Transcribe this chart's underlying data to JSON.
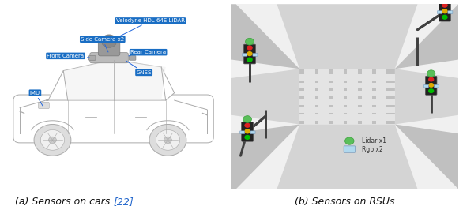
{
  "fig_width": 5.86,
  "fig_height": 2.66,
  "dpi": 100,
  "background_color": "#ffffff",
  "caption_left_main": "(a) Sensors on cars ",
  "caption_left_ref": "[22]",
  "caption_right": "(b) Sensors on RSUs",
  "caption_fontsize": 9,
  "caption_ref_color": "#2266cc",
  "caption_text_color": "#111111",
  "label_bg_color": "#1a6ec4",
  "label_text_color": "#ffffff",
  "label_fontsize": 5.0,
  "road_color": "#b8b8b8",
  "sidewalk_color": "#d0d0d0",
  "road_line_color": "#e8e8e8",
  "center_color": "#c4c4c4",
  "pole_color": "#404040",
  "lidar_color": "#5abf5a",
  "lidar_edge": "#3a9f3a",
  "tl_red": "#dd2222",
  "tl_yellow": "#ddaa00",
  "tl_green": "#00bb00",
  "tl_bg": "#222222",
  "cam_color": "#b0d8ee",
  "cam_edge": "#7799bb"
}
